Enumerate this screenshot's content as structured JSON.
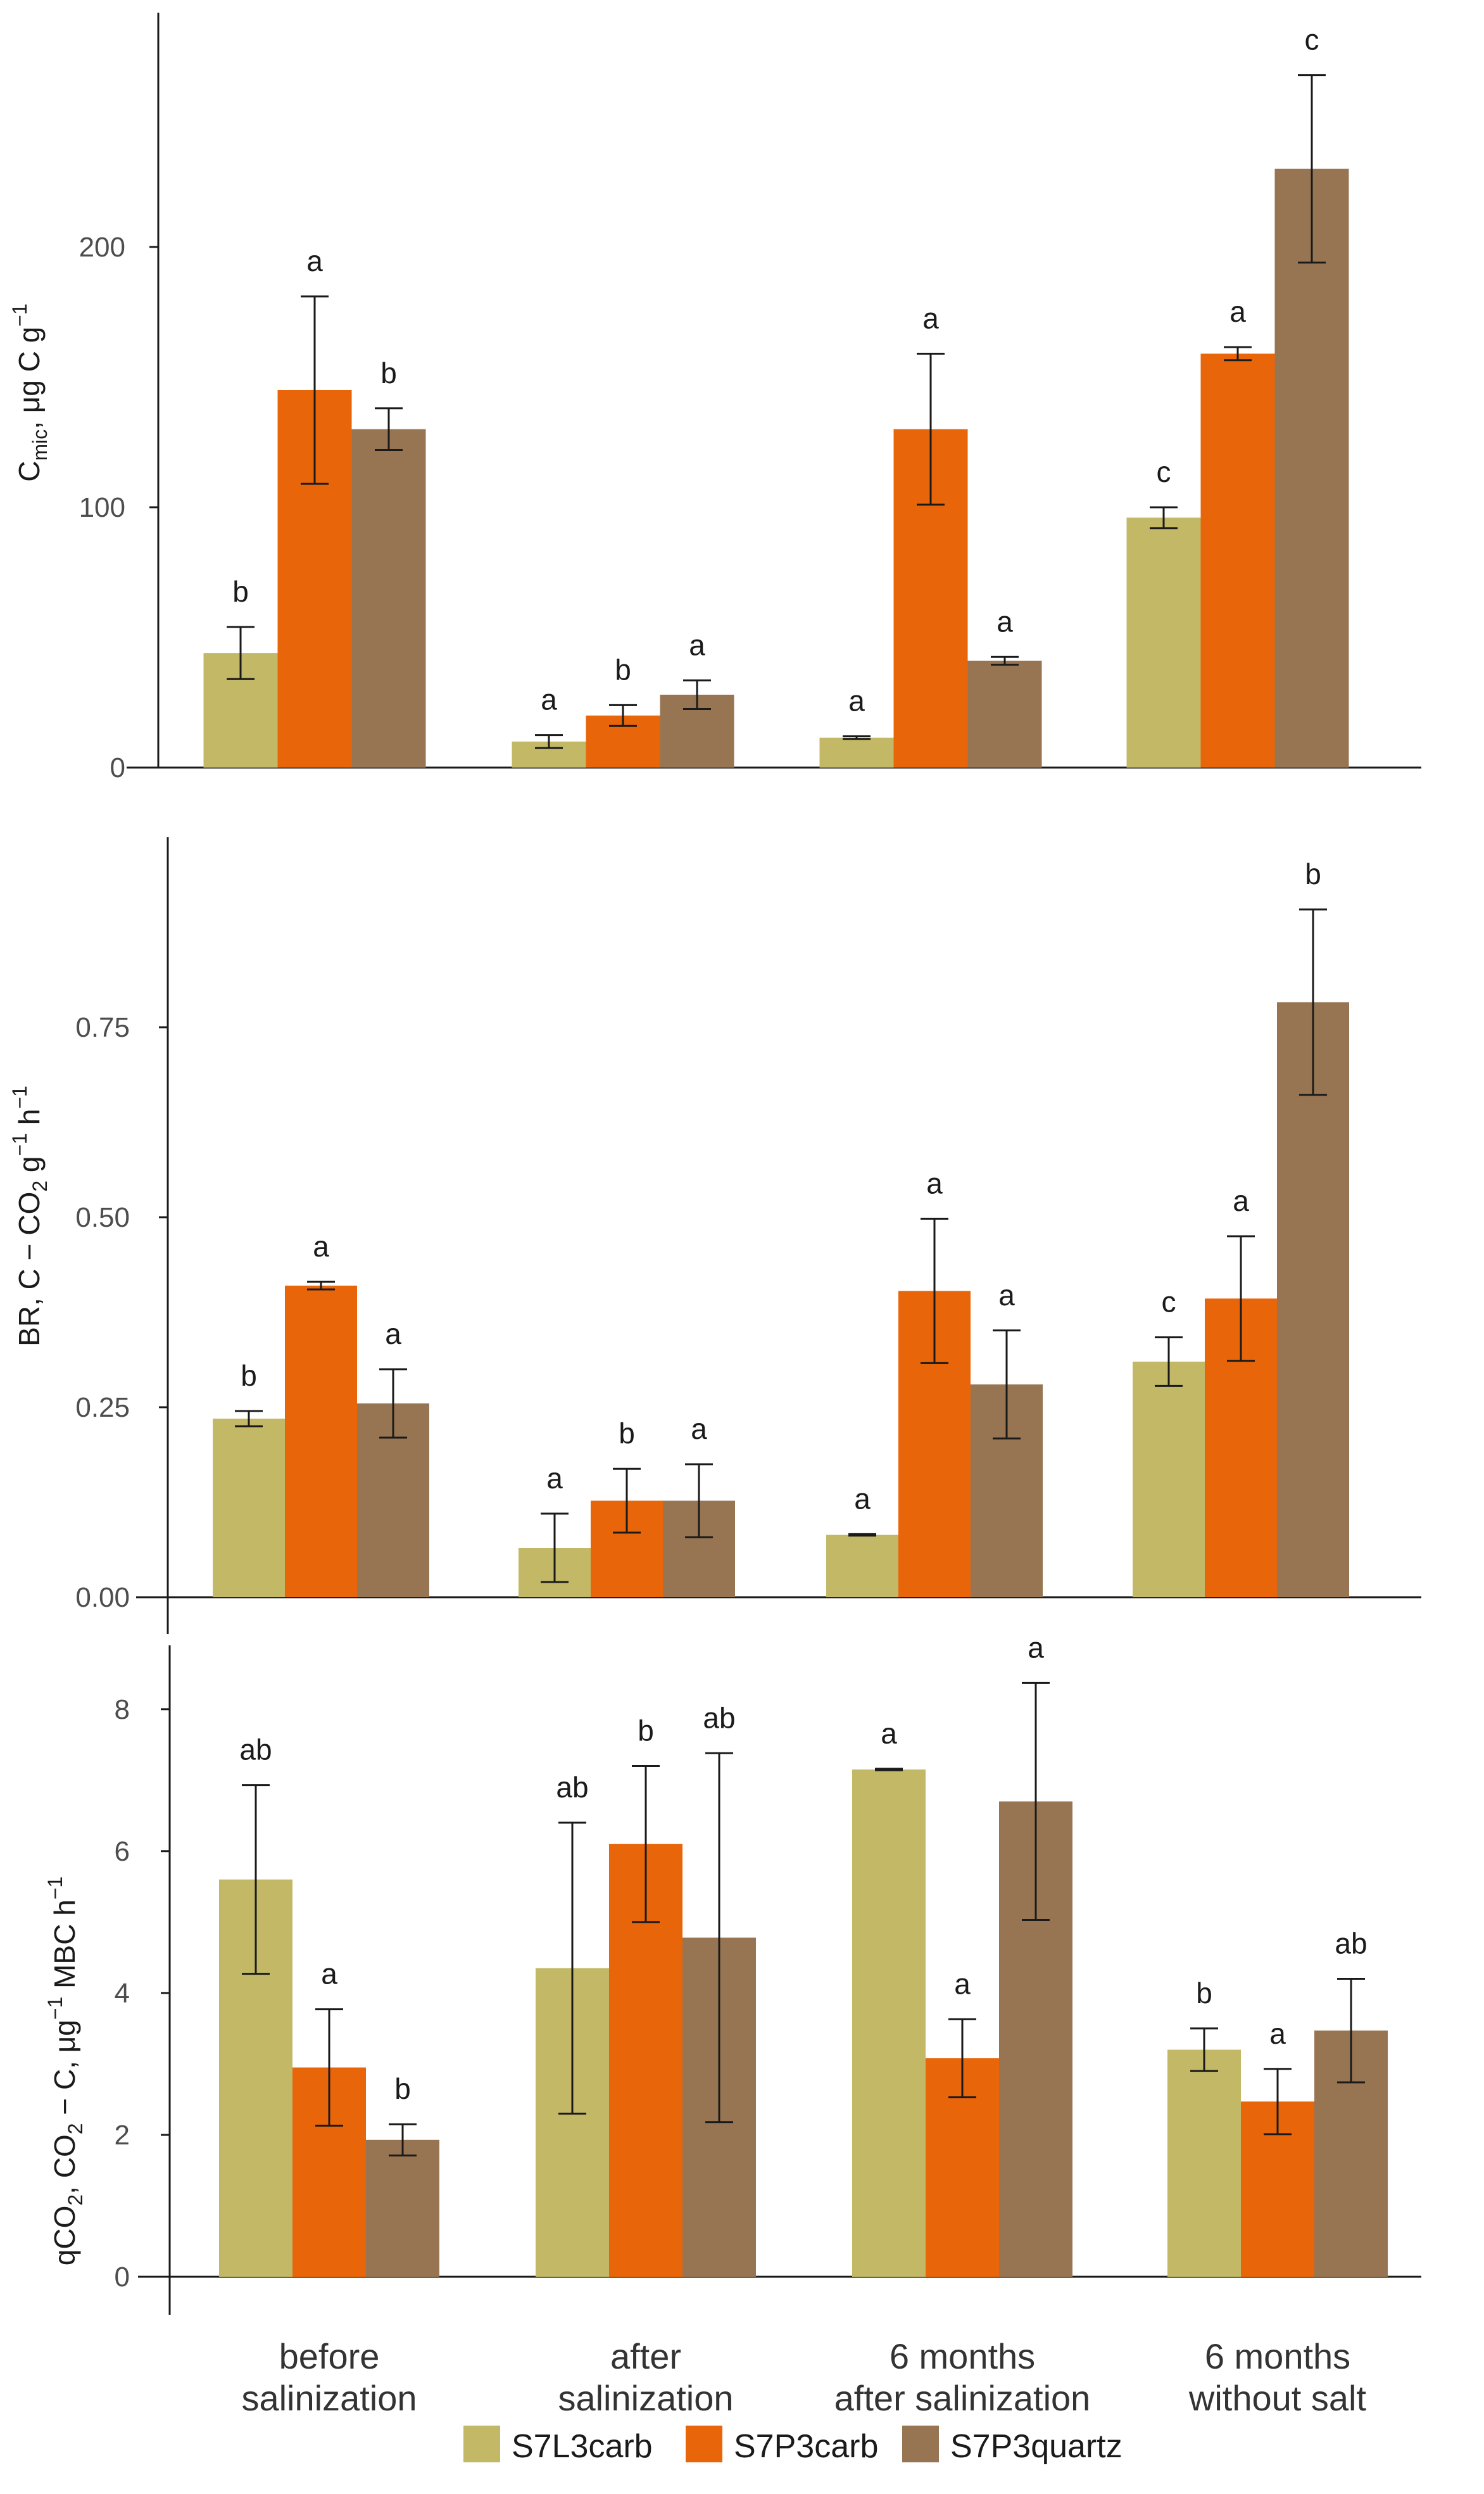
{
  "chart_data": [
    {
      "type": "bar",
      "panel": "top",
      "ylabel_parts": {
        "main": "C",
        "sub": "mic",
        "rest": ", μg C g",
        "sup": "−1"
      },
      "ylim": [
        0,
        290
      ],
      "yticks": [
        0,
        100,
        200
      ],
      "categories": [
        "before salinization",
        "after salinization",
        "6 months after salinization",
        "6 months without salt"
      ],
      "series": [
        {
          "name": "S7L3carb",
          "values": [
            44,
            10,
            11.5,
            96
          ],
          "errors": [
            10,
            2.5,
            0.5,
            4
          ],
          "labels": [
            "b",
            "a",
            "a",
            "c"
          ]
        },
        {
          "name": "S7P3carb",
          "values": [
            145,
            20,
            130,
            159
          ],
          "errors": [
            36,
            4,
            29,
            2.5
          ],
          "labels": [
            "a",
            "b",
            "a",
            "a"
          ]
        },
        {
          "name": "S7P3quartz",
          "values": [
            130,
            28,
            41,
            230
          ],
          "errors": [
            8,
            5.5,
            1.5,
            36
          ],
          "labels": [
            "b",
            "a",
            "a",
            "c"
          ]
        }
      ]
    },
    {
      "type": "bar",
      "panel": "middle",
      "ylabel_parts": {
        "pre": "BR,  C − CO",
        "sub": "2",
        "mid": " g",
        "sup1": "−1",
        "mid2": " h",
        "sup2": "−1"
      },
      "ylim": [
        0,
        1.0
      ],
      "yticks": [
        0.0,
        0.25,
        0.5,
        0.75
      ],
      "ytick_labels": [
        "0.00",
        "0.25",
        "0.50",
        "0.75"
      ],
      "categories": [
        "before salinization",
        "after salinization",
        "6 months after salinization",
        "6 months without salt"
      ],
      "series": [
        {
          "name": "S7L3carb",
          "values": [
            0.235,
            0.065,
            0.082,
            0.31
          ],
          "errors": [
            0.01,
            0.045,
            0.001,
            0.032
          ],
          "labels": [
            "b",
            "a",
            "a",
            "c"
          ]
        },
        {
          "name": "S7P3carb",
          "values": [
            0.41,
            0.127,
            0.403,
            0.393
          ],
          "errors": [
            0.005,
            0.042,
            0.095,
            0.082
          ],
          "labels": [
            "a",
            "b",
            "a",
            "a"
          ]
        },
        {
          "name": "S7P3quartz",
          "values": [
            0.255,
            0.127,
            0.28,
            0.783
          ],
          "errors": [
            0.045,
            0.048,
            0.071,
            0.122
          ],
          "labels": [
            "a",
            "a",
            "a",
            "b"
          ]
        }
      ]
    },
    {
      "type": "bar",
      "panel": "bottom",
      "ylabel_parts": {
        "pre": "qCO",
        "sub": "2",
        "mid": ", CO",
        "sub2": "2",
        "mid2": " − C, μg",
        "sup": "−1",
        "rest": " MBC h",
        "sup2": "−1"
      },
      "ylim": [
        0,
        8.9
      ],
      "yticks": [
        0,
        2,
        4,
        6,
        8
      ],
      "categories": [
        "before salinization",
        "after salinization",
        "6 months after salinization",
        "6 months without salt"
      ],
      "series": [
        {
          "name": "S7L3carb",
          "values": [
            5.6,
            4.35,
            7.15,
            3.2
          ],
          "errors": [
            1.33,
            2.05,
            0.01,
            0.3
          ],
          "labels": [
            "ab",
            "ab",
            "a",
            "b"
          ]
        },
        {
          "name": "S7P3carb",
          "values": [
            2.95,
            6.1,
            3.08,
            2.47
          ],
          "errors": [
            0.82,
            1.1,
            0.55,
            0.46
          ],
          "labels": [
            "a",
            "b",
            "a",
            "a"
          ]
        },
        {
          "name": "S7P3quartz",
          "values": [
            1.93,
            4.78,
            6.7,
            3.47
          ],
          "errors": [
            0.22,
            2.6,
            1.67,
            0.73
          ],
          "labels": [
            "b",
            "ab",
            "a",
            "ab"
          ]
        }
      ]
    }
  ],
  "x_category_lines": [
    [
      "before",
      "salinization"
    ],
    [
      "after",
      "salinization"
    ],
    [
      "6 months",
      "after salinization"
    ],
    [
      "6 months",
      "without salt"
    ]
  ],
  "legend": [
    {
      "name": "S7L3carb",
      "color": "#c2b866"
    },
    {
      "name": "S7P3carb",
      "color": "#e8650a"
    },
    {
      "name": "S7P3quartz",
      "color": "#977552"
    }
  ]
}
